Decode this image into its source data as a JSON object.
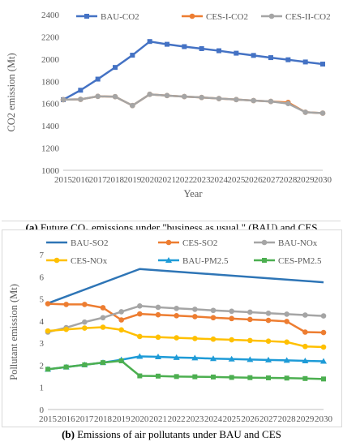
{
  "chart_data": [
    {
      "type": "line",
      "x": [
        "2015",
        "2016",
        "2017",
        "2018",
        "2019",
        "2020",
        "2021",
        "2022",
        "2023",
        "2024",
        "2025",
        "2026",
        "2027",
        "2028",
        "2029",
        "2030"
      ],
      "ylim": [
        1000,
        2400
      ],
      "yticks": [
        1000,
        1200,
        1400,
        1600,
        1800,
        2000,
        2200,
        2400
      ],
      "xlabel": "Year",
      "ylabel": "CO2 emission (Mt)",
      "grid": false,
      "legend_position": "top",
      "series": [
        {
          "name": "BAU-CO2",
          "color": "#4472C4",
          "marker": "square",
          "values": [
            1635,
            1720,
            1820,
            1925,
            2035,
            2158,
            2133,
            2112,
            2094,
            2075,
            2053,
            2033,
            2013,
            1994,
            1974,
            1955
          ]
        },
        {
          "name": "CES-I-CO2",
          "color": "#ED7D31",
          "marker": "circle",
          "values": [
            1635,
            1638,
            1665,
            1662,
            1582,
            1683,
            1672,
            1663,
            1655,
            1645,
            1636,
            1627,
            1619,
            1610,
            1522,
            1514
          ]
        },
        {
          "name": "CES-II-CO2",
          "color": "#A5A5A5",
          "marker": "circle",
          "values": [
            1635,
            1638,
            1665,
            1662,
            1582,
            1683,
            1672,
            1663,
            1655,
            1645,
            1636,
            1627,
            1619,
            1600,
            1522,
            1514
          ]
        }
      ]
    },
    {
      "type": "line",
      "x": [
        "2015",
        "2016",
        "2017",
        "2018",
        "2019",
        "2020",
        "2021",
        "2022",
        "2023",
        "2024",
        "2025",
        "2026",
        "2027",
        "2028",
        "2029",
        "2030"
      ],
      "ylim": [
        0,
        7
      ],
      "yticks": [
        0,
        1,
        2,
        3,
        4,
        5,
        6,
        7
      ],
      "xlabel": "Year",
      "ylabel": "Pollutant emission (Mt)",
      "grid": false,
      "legend_position": "top",
      "series": [
        {
          "name": "BAU-SO2",
          "color": "#2E75B6",
          "marker": "none",
          "values": [
            4.8,
            null,
            null,
            null,
            null,
            6.35,
            null,
            null,
            null,
            null,
            null,
            null,
            null,
            null,
            null,
            5.75
          ]
        },
        {
          "name": "CES-SO2",
          "color": "#ED7D31",
          "marker": "circle",
          "values": [
            4.78,
            4.75,
            4.75,
            4.6,
            4.05,
            4.32,
            4.28,
            4.24,
            4.2,
            4.15,
            4.11,
            4.07,
            4.03,
            3.98,
            3.5,
            3.48
          ]
        },
        {
          "name": "BAU-NOx",
          "color": "#A5A5A5",
          "marker": "circle",
          "values": [
            3.5,
            3.7,
            3.95,
            4.15,
            4.42,
            4.68,
            4.62,
            4.57,
            4.53,
            4.48,
            4.44,
            4.4,
            4.35,
            4.31,
            4.27,
            4.23
          ]
        },
        {
          "name": "CES-NOx",
          "color": "#FFC000",
          "marker": "circle",
          "values": [
            3.55,
            3.62,
            3.68,
            3.72,
            3.6,
            3.3,
            3.27,
            3.24,
            3.21,
            3.18,
            3.15,
            3.12,
            3.09,
            3.05,
            2.85,
            2.82
          ]
        },
        {
          "name": "BAU-PM2.5",
          "color": "#1E9BD7",
          "marker": "triangle",
          "values": [
            1.82,
            1.92,
            2.02,
            2.12,
            2.25,
            2.4,
            2.38,
            2.35,
            2.33,
            2.3,
            2.28,
            2.26,
            2.24,
            2.22,
            2.2,
            2.18
          ]
        },
        {
          "name": "CES-PM2.5",
          "color": "#4CAF50",
          "marker": "square",
          "values": [
            1.82,
            1.92,
            2.02,
            2.12,
            2.2,
            1.52,
            1.51,
            1.49,
            1.48,
            1.47,
            1.45,
            1.44,
            1.43,
            1.42,
            1.4,
            1.38
          ]
        }
      ]
    }
  ],
  "captions": {
    "a_label": "(a)",
    "a_text": " Future CO₂ emissions under \"business as usual \" (BAU) and CES",
    "b_label": "(b)",
    "b_text": " Emissions of air pollutants under BAU and CES"
  }
}
